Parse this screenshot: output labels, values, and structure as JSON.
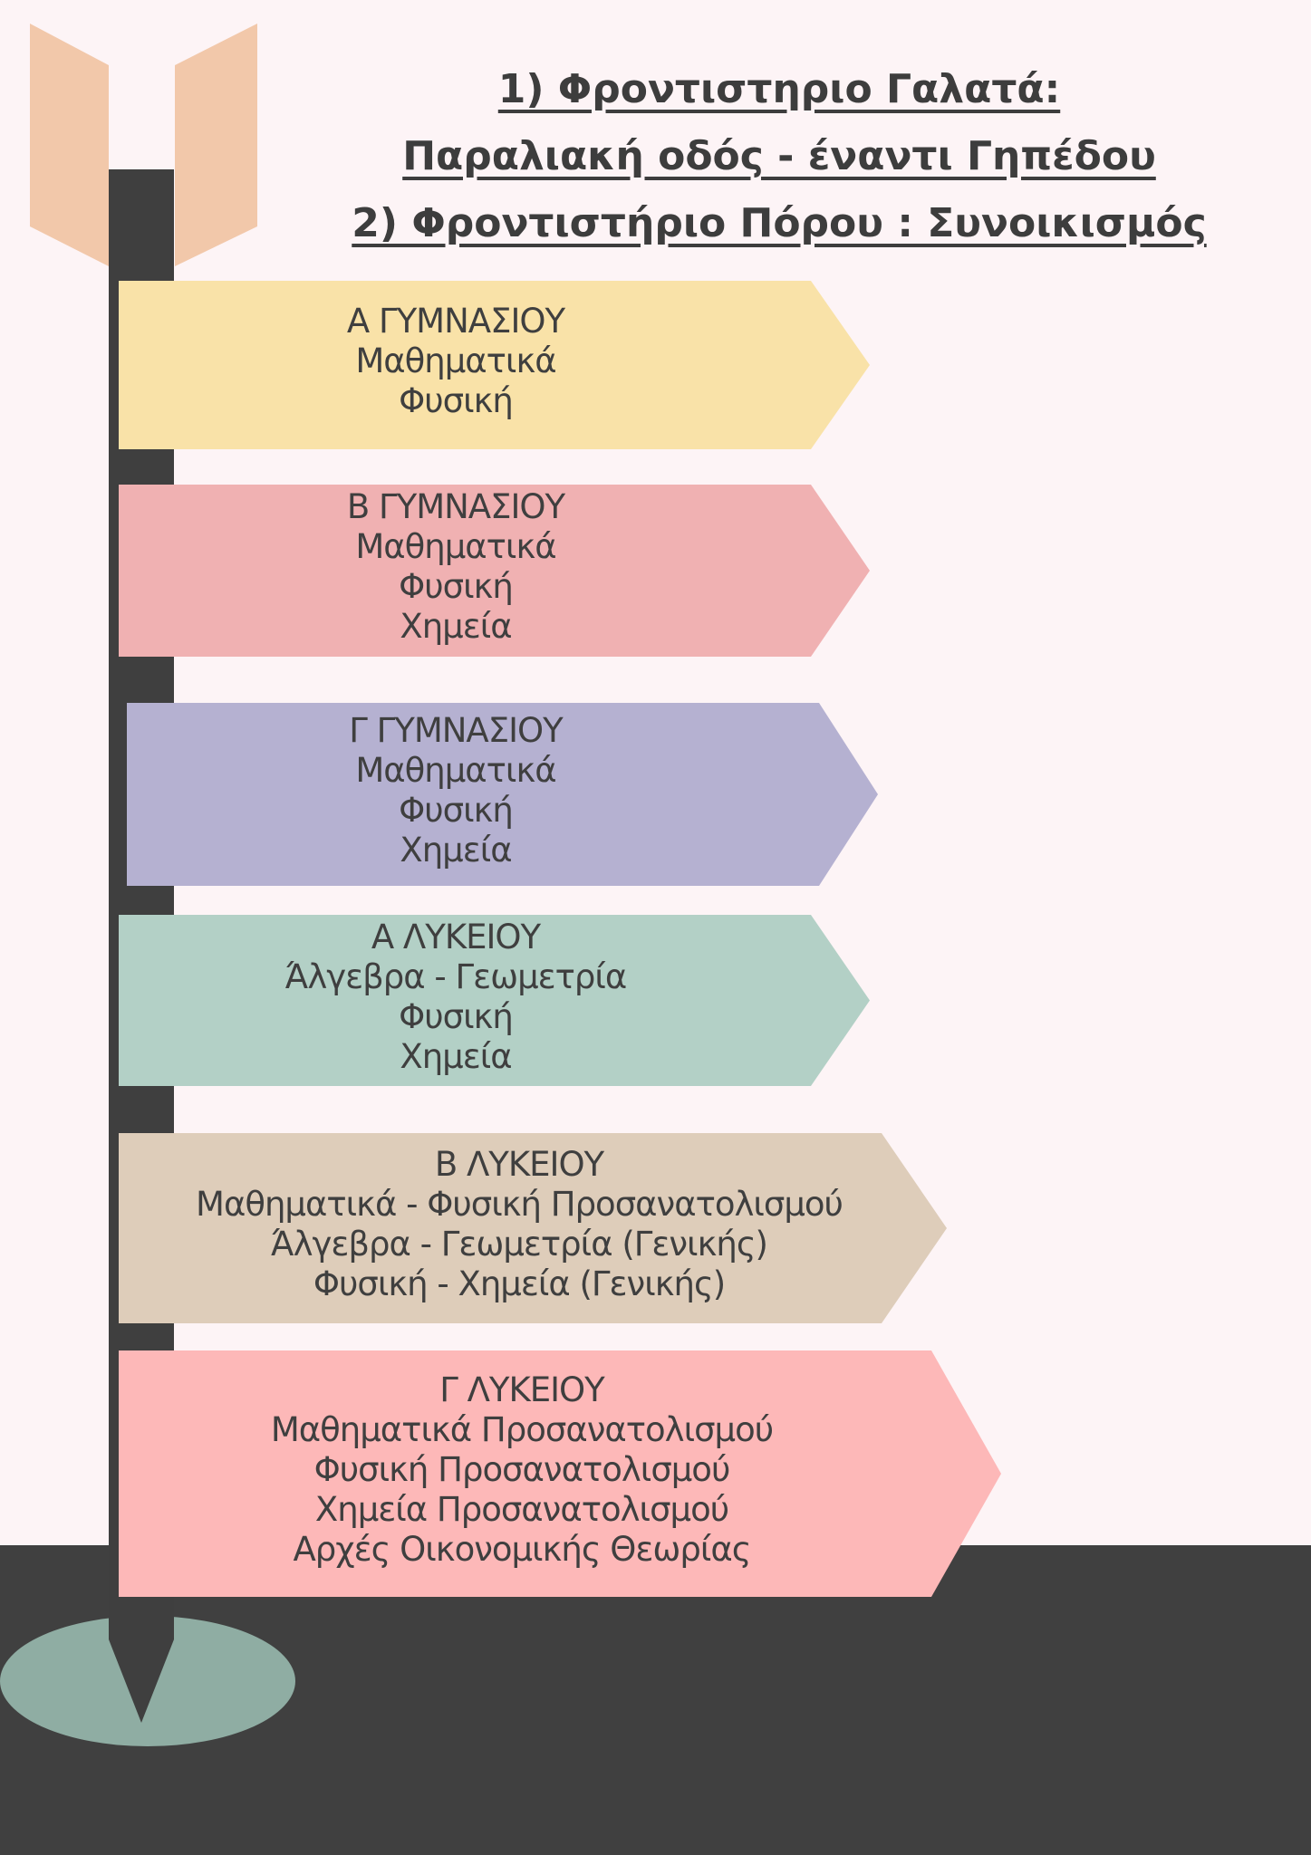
{
  "header": {
    "lines": [
      "1) Φροντιστηριο Γαλατά:",
      "Παραλιακή οδός - έναντι Γηπέδου",
      "2) Φροντιστήριο Πόρου : Συνοικισμός"
    ]
  },
  "signs": [
    {
      "title": "Α ΓΥΜΝΑΣΙΟΥ",
      "subjects": [
        "Μαθηματικά",
        "Φυσική"
      ],
      "color": "#F9E2A8"
    },
    {
      "title": "Β ΓΥΜΝΑΣΙΟΥ",
      "subjects": [
        "Μαθηματικά",
        "Φυσική",
        "Χημεία"
      ],
      "color": "#F0B1B2"
    },
    {
      "title": "Γ ΓΥΜΝΑΣΙΟΥ",
      "subjects": [
        "Μαθηματικά",
        "Φυσική",
        "Χημεία"
      ],
      "color": "#B5B1D1"
    },
    {
      "title": "Α ΛΥΚΕΙΟΥ",
      "subjects": [
        "Άλγεβρα - Γεωμετρία",
        "Φυσική",
        "Χημεία"
      ],
      "color": "#B3D0C6"
    },
    {
      "title": "Β ΛΥΚΕΙΟΥ",
      "subjects": [
        "Μαθηματικά - Φυσική Προσανατολισμού",
        "Άλγεβρα - Γεωμετρία (Γενικής)",
        "Φυσική - Χημεία (Γενικής)"
      ],
      "color": "#DECDBA"
    },
    {
      "title": "Γ ΛΥΚΕΙΟΥ",
      "subjects": [
        "Μαθηματικά Προσανατολισμού",
        "Φυσική Προσανατολισμού",
        "Χημεία Προσανατολισμού",
        "Αρχές Οικονομικής Θεωρίας"
      ],
      "color": "#FDB8B8"
    }
  ],
  "colors": {
    "background": "#FDF4F6",
    "ground": "#404040",
    "pole": "#3f3f3f",
    "fletching": "#F2C8AA",
    "base": "#8FADA3"
  }
}
